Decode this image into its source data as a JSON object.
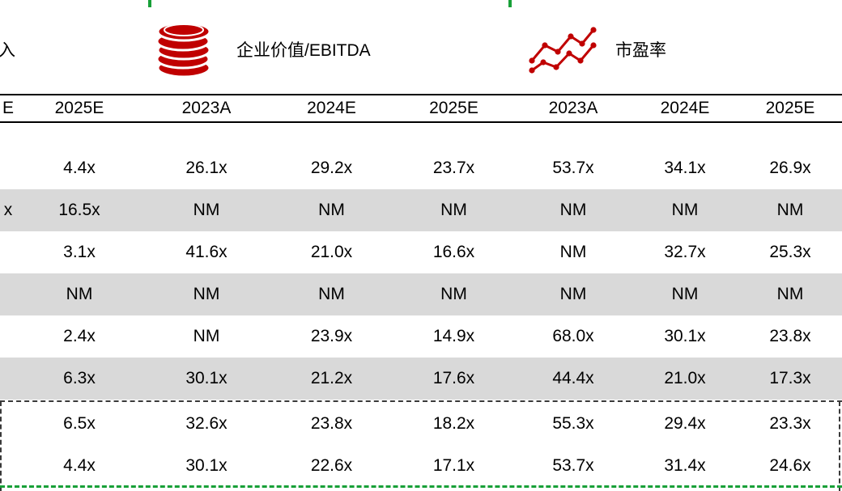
{
  "legend": {
    "left_partial_label": "入",
    "items": [
      {
        "icon": "coins-icon",
        "label": "企业价值/EBITDA"
      },
      {
        "icon": "line-chart-icon",
        "label": "市盈率"
      }
    ]
  },
  "table": {
    "columns": [
      "E",
      "2025E",
      "2023A",
      "2024E",
      "2025E",
      "2023A",
      "2024E",
      "2025E"
    ],
    "rows": [
      {
        "shaded": false,
        "values": [
          "",
          "4.4x",
          "26.1x",
          "29.2x",
          "23.7x",
          "53.7x",
          "34.1x",
          "26.9x"
        ]
      },
      {
        "shaded": true,
        "values": [
          "x",
          "16.5x",
          "NM",
          "NM",
          "NM",
          "NM",
          "NM",
          "NM"
        ]
      },
      {
        "shaded": false,
        "values": [
          "",
          "3.1x",
          "41.6x",
          "21.0x",
          "16.6x",
          "NM",
          "32.7x",
          "25.3x"
        ]
      },
      {
        "shaded": true,
        "values": [
          "",
          "NM",
          "NM",
          "NM",
          "NM",
          "NM",
          "NM",
          "NM"
        ]
      },
      {
        "shaded": false,
        "values": [
          "",
          "2.4x",
          "NM",
          "23.9x",
          "14.9x",
          "68.0x",
          "30.1x",
          "23.8x"
        ]
      },
      {
        "shaded": true,
        "values": [
          "",
          "6.3x",
          "30.1x",
          "21.2x",
          "17.6x",
          "44.4x",
          "21.0x",
          "17.3x"
        ]
      }
    ],
    "summary_rows": [
      {
        "shaded": false,
        "values": [
          "",
          "6.5x",
          "32.6x",
          "23.8x",
          "18.2x",
          "55.3x",
          "29.4x",
          "23.3x"
        ]
      },
      {
        "shaded": false,
        "values": [
          "",
          "4.4x",
          "30.1x",
          "22.6x",
          "17.1x",
          "53.7x",
          "31.4x",
          "24.6x"
        ]
      }
    ]
  },
  "colors": {
    "accent_red": "#C00000",
    "row_shade": "#D9D9D9",
    "page_break_green": "#18A038"
  }
}
